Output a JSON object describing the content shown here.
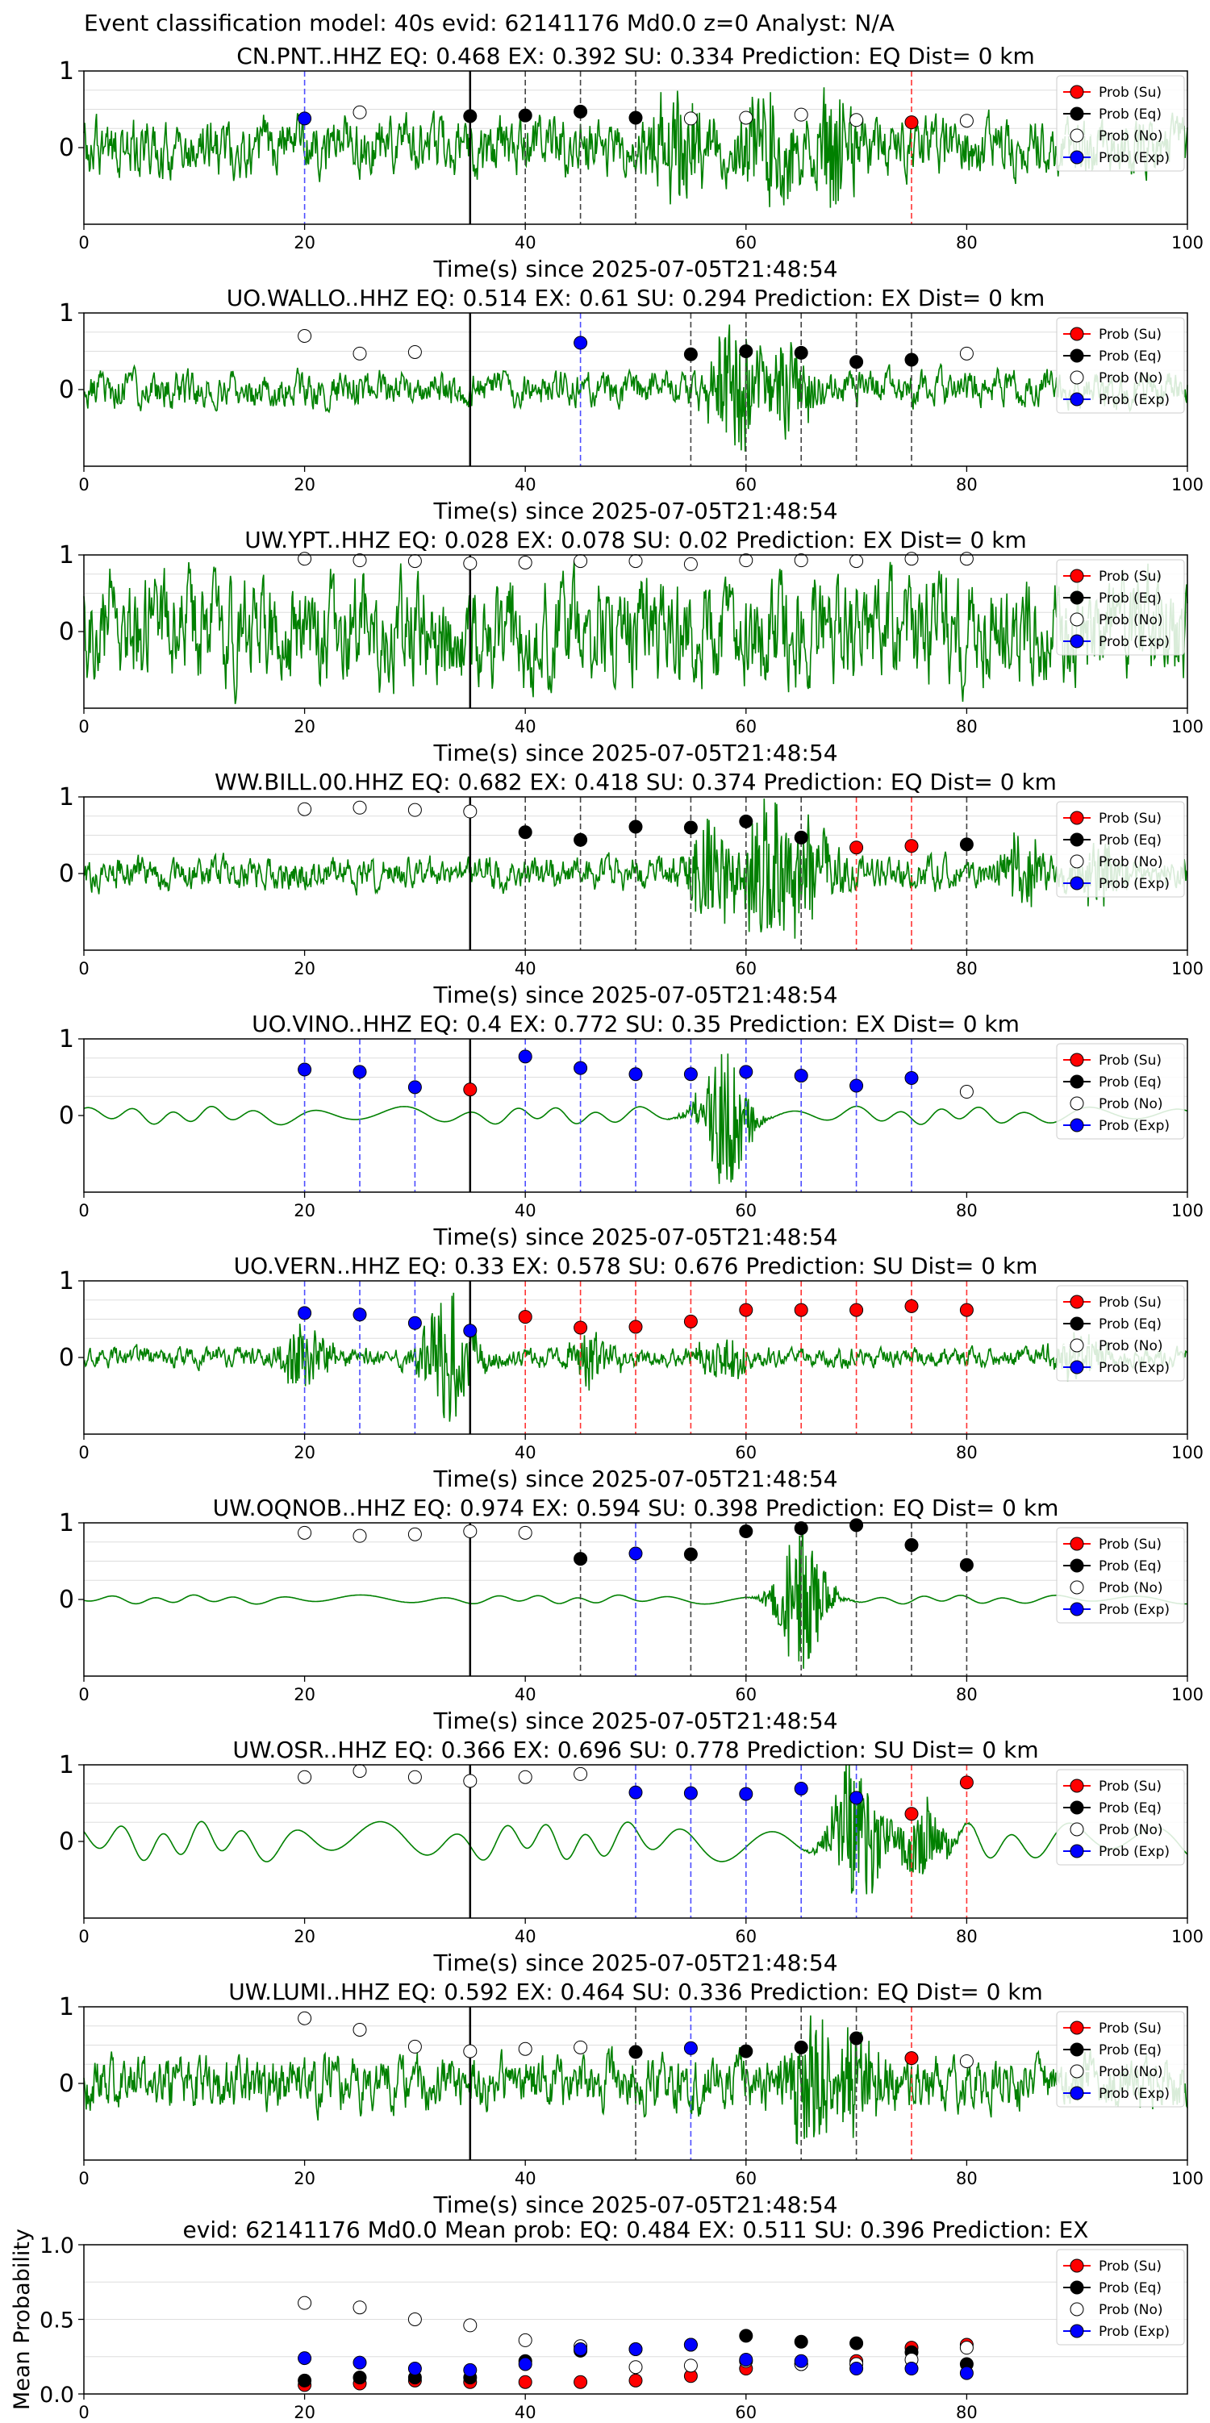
{
  "figure_title": "Event classification model: 40s evid: 62141176 Md0.0 z=0 Analyst: N/A",
  "xlabel": "Time(s) since 2025-07-05T21:48:54",
  "legend_entries": [
    "Prob (Su)",
    "Prob (Eq)",
    "Prob (No)",
    "Prob (Exp)"
  ],
  "colors": {
    "waveform": "#008000",
    "su": "#ff0000",
    "eq": "#000000",
    "no": "#ffffff",
    "exp": "#0000ff",
    "axis": "#000000",
    "grid": "#dddddd"
  },
  "chart_data": [
    {
      "type": "line",
      "title": "CN.PNT..HHZ   EQ: 0.468  EX: 0.392  SU: 0.334   Prediction: EQ    Dist= 0 km",
      "xlim": [
        0,
        100
      ],
      "ylim": [
        -1,
        1
      ],
      "xticks": [
        0,
        20,
        40,
        60,
        80,
        100
      ],
      "yticks": [
        0,
        1
      ],
      "waveform": {
        "amplitude": 0.3,
        "style": "noisy",
        "bursts": [
          {
            "t": 54,
            "a": 0.65
          },
          {
            "t": 62,
            "a": 0.75
          },
          {
            "t": 68,
            "a": 0.75
          }
        ]
      },
      "onset_line_x": 35,
      "points": [
        {
          "x": 20,
          "y": 0.38,
          "cls": "exp"
        },
        {
          "x": 25,
          "y": 0.46,
          "cls": "no"
        },
        {
          "x": 35,
          "y": 0.41,
          "cls": "eq"
        },
        {
          "x": 40,
          "y": 0.42,
          "cls": "eq"
        },
        {
          "x": 45,
          "y": 0.47,
          "cls": "eq"
        },
        {
          "x": 50,
          "y": 0.39,
          "cls": "eq"
        },
        {
          "x": 55,
          "y": 0.38,
          "cls": "no"
        },
        {
          "x": 60,
          "y": 0.39,
          "cls": "no"
        },
        {
          "x": 65,
          "y": 0.43,
          "cls": "no"
        },
        {
          "x": 70,
          "y": 0.36,
          "cls": "no"
        },
        {
          "x": 75,
          "y": 0.33,
          "cls": "su"
        },
        {
          "x": 80,
          "y": 0.35,
          "cls": "no"
        }
      ]
    },
    {
      "type": "line",
      "title": "UO.WALLO..HHZ   EQ: 0.514  EX: 0.61  SU: 0.294   Prediction: EX    Dist= 0 km",
      "xlim": [
        0,
        100
      ],
      "ylim": [
        -1,
        1
      ],
      "xticks": [
        0,
        20,
        40,
        60,
        80,
        100
      ],
      "yticks": [
        0,
        1
      ],
      "waveform": {
        "amplitude": 0.18,
        "style": "noisy",
        "bursts": [
          {
            "t": 59,
            "a": 0.9
          },
          {
            "t": 64,
            "a": 0.5
          }
        ]
      },
      "onset_line_x": 35,
      "points": [
        {
          "x": 20,
          "y": 0.7,
          "cls": "no"
        },
        {
          "x": 25,
          "y": 0.47,
          "cls": "no"
        },
        {
          "x": 30,
          "y": 0.49,
          "cls": "no"
        },
        {
          "x": 45,
          "y": 0.61,
          "cls": "exp"
        },
        {
          "x": 55,
          "y": 0.46,
          "cls": "eq"
        },
        {
          "x": 60,
          "y": 0.5,
          "cls": "eq"
        },
        {
          "x": 65,
          "y": 0.48,
          "cls": "eq"
        },
        {
          "x": 70,
          "y": 0.36,
          "cls": "eq"
        },
        {
          "x": 75,
          "y": 0.39,
          "cls": "eq"
        },
        {
          "x": 80,
          "y": 0.47,
          "cls": "no"
        }
      ]
    },
    {
      "type": "line",
      "title": "UW.YPT..HHZ   EQ: 0.028  EX: 0.078  SU: 0.02   Prediction: EX    Dist= 0 km",
      "xlim": [
        0,
        100
      ],
      "ylim": [
        -1,
        1
      ],
      "xticks": [
        0,
        20,
        40,
        60,
        80,
        100
      ],
      "yticks": [
        0,
        1
      ],
      "waveform": {
        "amplitude": 0.55,
        "style": "noisy",
        "bursts": []
      },
      "onset_line_x": 35,
      "points": [
        {
          "x": 20,
          "y": 0.95,
          "cls": "no"
        },
        {
          "x": 25,
          "y": 0.93,
          "cls": "no"
        },
        {
          "x": 30,
          "y": 0.92,
          "cls": "no"
        },
        {
          "x": 35,
          "y": 0.89,
          "cls": "no"
        },
        {
          "x": 40,
          "y": 0.9,
          "cls": "no"
        },
        {
          "x": 45,
          "y": 0.92,
          "cls": "no"
        },
        {
          "x": 50,
          "y": 0.92,
          "cls": "no"
        },
        {
          "x": 55,
          "y": 0.88,
          "cls": "no"
        },
        {
          "x": 60,
          "y": 0.93,
          "cls": "no"
        },
        {
          "x": 65,
          "y": 0.93,
          "cls": "no"
        },
        {
          "x": 70,
          "y": 0.92,
          "cls": "no"
        },
        {
          "x": 75,
          "y": 0.95,
          "cls": "no"
        },
        {
          "x": 80,
          "y": 0.95,
          "cls": "no"
        }
      ]
    },
    {
      "type": "line",
      "title": "WW.BILL.00.HHZ   EQ: 0.682  EX: 0.418  SU: 0.374   Prediction: EQ    Dist= 0 km",
      "xlim": [
        0,
        100
      ],
      "ylim": [
        -1,
        1
      ],
      "xticks": [
        0,
        20,
        40,
        60,
        80,
        100
      ],
      "yticks": [
        0,
        1
      ],
      "waveform": {
        "amplitude": 0.17,
        "style": "noisy",
        "bursts": [
          {
            "t": 57,
            "a": 0.7
          },
          {
            "t": 62,
            "a": 0.9
          },
          {
            "t": 66,
            "a": 0.6
          },
          {
            "t": 85,
            "a": 0.4
          },
          {
            "t": 92,
            "a": 0.4
          }
        ]
      },
      "onset_line_x": 35,
      "points": [
        {
          "x": 20,
          "y": 0.84,
          "cls": "no"
        },
        {
          "x": 25,
          "y": 0.86,
          "cls": "no"
        },
        {
          "x": 30,
          "y": 0.83,
          "cls": "no"
        },
        {
          "x": 35,
          "y": 0.81,
          "cls": "no"
        },
        {
          "x": 40,
          "y": 0.54,
          "cls": "eq"
        },
        {
          "x": 45,
          "y": 0.44,
          "cls": "eq"
        },
        {
          "x": 50,
          "y": 0.61,
          "cls": "eq"
        },
        {
          "x": 55,
          "y": 0.6,
          "cls": "eq"
        },
        {
          "x": 60,
          "y": 0.68,
          "cls": "eq"
        },
        {
          "x": 65,
          "y": 0.47,
          "cls": "eq"
        },
        {
          "x": 70,
          "y": 0.34,
          "cls": "su"
        },
        {
          "x": 75,
          "y": 0.36,
          "cls": "su"
        },
        {
          "x": 80,
          "y": 0.38,
          "cls": "eq"
        }
      ]
    },
    {
      "type": "line",
      "title": "UO.VINO..HHZ   EQ: 0.4  EX: 0.772  SU: 0.35   Prediction: EX    Dist= 0 km",
      "xlim": [
        0,
        100
      ],
      "ylim": [
        -1,
        1
      ],
      "xticks": [
        0,
        20,
        40,
        60,
        80,
        100
      ],
      "yticks": [
        0,
        1
      ],
      "waveform": {
        "amplitude": 0.1,
        "style": "smooth",
        "bursts": [
          {
            "t": 58,
            "a": 0.95
          }
        ]
      },
      "onset_line_x": 35,
      "points": [
        {
          "x": 20,
          "y": 0.6,
          "cls": "exp"
        },
        {
          "x": 25,
          "y": 0.57,
          "cls": "exp"
        },
        {
          "x": 30,
          "y": 0.37,
          "cls": "exp"
        },
        {
          "x": 35,
          "y": 0.34,
          "cls": "su"
        },
        {
          "x": 40,
          "y": 0.77,
          "cls": "exp"
        },
        {
          "x": 45,
          "y": 0.62,
          "cls": "exp"
        },
        {
          "x": 50,
          "y": 0.54,
          "cls": "exp"
        },
        {
          "x": 55,
          "y": 0.54,
          "cls": "exp"
        },
        {
          "x": 60,
          "y": 0.57,
          "cls": "exp"
        },
        {
          "x": 65,
          "y": 0.52,
          "cls": "exp"
        },
        {
          "x": 70,
          "y": 0.39,
          "cls": "exp"
        },
        {
          "x": 75,
          "y": 0.49,
          "cls": "exp"
        },
        {
          "x": 80,
          "y": 0.31,
          "cls": "no"
        }
      ]
    },
    {
      "type": "line",
      "title": "UO.VERN..HHZ   EQ: 0.33  EX: 0.578  SU: 0.676   Prediction: SU    Dist= 0 km",
      "xlim": [
        0,
        100
      ],
      "ylim": [
        -1,
        1
      ],
      "xticks": [
        0,
        20,
        40,
        60,
        80,
        100
      ],
      "yticks": [
        0,
        1
      ],
      "waveform": {
        "amplitude": 0.1,
        "style": "noisy",
        "bursts": [
          {
            "t": 20,
            "a": 0.4
          },
          {
            "t": 33,
            "a": 0.85
          },
          {
            "t": 46,
            "a": 0.3
          },
          {
            "t": 58,
            "a": 0.3
          },
          {
            "t": 90,
            "a": 0.3
          }
        ]
      },
      "onset_line_x": 35,
      "points": [
        {
          "x": 20,
          "y": 0.58,
          "cls": "exp"
        },
        {
          "x": 25,
          "y": 0.56,
          "cls": "exp"
        },
        {
          "x": 30,
          "y": 0.45,
          "cls": "exp"
        },
        {
          "x": 35,
          "y": 0.35,
          "cls": "exp"
        },
        {
          "x": 40,
          "y": 0.53,
          "cls": "su"
        },
        {
          "x": 45,
          "y": 0.39,
          "cls": "su"
        },
        {
          "x": 50,
          "y": 0.4,
          "cls": "su"
        },
        {
          "x": 55,
          "y": 0.47,
          "cls": "su"
        },
        {
          "x": 60,
          "y": 0.62,
          "cls": "su"
        },
        {
          "x": 65,
          "y": 0.62,
          "cls": "su"
        },
        {
          "x": 70,
          "y": 0.62,
          "cls": "su"
        },
        {
          "x": 75,
          "y": 0.67,
          "cls": "su"
        },
        {
          "x": 80,
          "y": 0.62,
          "cls": "su"
        }
      ]
    },
    {
      "type": "line",
      "title": "UW.OQNOB..HHZ   EQ: 0.974  EX: 0.594  SU: 0.398   Prediction: EQ    Dist= 0 km",
      "xlim": [
        0,
        100
      ],
      "ylim": [
        -1,
        1
      ],
      "xticks": [
        0,
        20,
        40,
        60,
        80,
        100
      ],
      "yticks": [
        0,
        1
      ],
      "waveform": {
        "amplitude": 0.05,
        "style": "smooth",
        "bursts": [
          {
            "t": 65,
            "a": 0.95
          }
        ]
      },
      "onset_line_x": 35,
      "points": [
        {
          "x": 20,
          "y": 0.87,
          "cls": "no"
        },
        {
          "x": 25,
          "y": 0.83,
          "cls": "no"
        },
        {
          "x": 30,
          "y": 0.85,
          "cls": "no"
        },
        {
          "x": 35,
          "y": 0.89,
          "cls": "no"
        },
        {
          "x": 40,
          "y": 0.87,
          "cls": "no"
        },
        {
          "x": 45,
          "y": 0.53,
          "cls": "eq"
        },
        {
          "x": 50,
          "y": 0.6,
          "cls": "exp"
        },
        {
          "x": 55,
          "y": 0.59,
          "cls": "eq"
        },
        {
          "x": 60,
          "y": 0.89,
          "cls": "eq"
        },
        {
          "x": 65,
          "y": 0.93,
          "cls": "eq"
        },
        {
          "x": 70,
          "y": 0.97,
          "cls": "eq"
        },
        {
          "x": 75,
          "y": 0.71,
          "cls": "eq"
        },
        {
          "x": 80,
          "y": 0.45,
          "cls": "eq"
        }
      ]
    },
    {
      "type": "line",
      "title": "UW.OSR..HHZ   EQ: 0.366  EX: 0.696  SU: 0.778   Prediction: SU    Dist= 0 km",
      "xlim": [
        0,
        100
      ],
      "ylim": [
        -1,
        1
      ],
      "xticks": [
        0,
        20,
        40,
        60,
        80,
        100
      ],
      "yticks": [
        0,
        1
      ],
      "waveform": {
        "amplitude": 0.22,
        "style": "smooth",
        "bursts": [
          {
            "t": 70,
            "a": 0.95
          },
          {
            "t": 76,
            "a": 0.5
          }
        ]
      },
      "onset_line_x": 35,
      "points": [
        {
          "x": 20,
          "y": 0.84,
          "cls": "no"
        },
        {
          "x": 25,
          "y": 0.92,
          "cls": "no"
        },
        {
          "x": 30,
          "y": 0.84,
          "cls": "no"
        },
        {
          "x": 35,
          "y": 0.79,
          "cls": "no"
        },
        {
          "x": 40,
          "y": 0.84,
          "cls": "no"
        },
        {
          "x": 45,
          "y": 0.88,
          "cls": "no"
        },
        {
          "x": 50,
          "y": 0.64,
          "cls": "exp"
        },
        {
          "x": 55,
          "y": 0.63,
          "cls": "exp"
        },
        {
          "x": 60,
          "y": 0.62,
          "cls": "exp"
        },
        {
          "x": 65,
          "y": 0.69,
          "cls": "exp"
        },
        {
          "x": 70,
          "y": 0.57,
          "cls": "exp"
        },
        {
          "x": 75,
          "y": 0.36,
          "cls": "su"
        },
        {
          "x": 80,
          "y": 0.77,
          "cls": "su"
        }
      ]
    },
    {
      "type": "line",
      "title": "UW.LUMI..HHZ   EQ: 0.592  EX: 0.464  SU: 0.336   Prediction: EQ    Dist= 0 km",
      "xlim": [
        0,
        100
      ],
      "ylim": [
        -1,
        1
      ],
      "xticks": [
        0,
        20,
        40,
        60,
        80,
        100
      ],
      "yticks": [
        0,
        1
      ],
      "waveform": {
        "amplitude": 0.28,
        "style": "noisy",
        "bursts": [
          {
            "t": 66,
            "a": 0.8
          },
          {
            "t": 70,
            "a": 0.6
          }
        ]
      },
      "onset_line_x": 35,
      "points": [
        {
          "x": 20,
          "y": 0.85,
          "cls": "no"
        },
        {
          "x": 25,
          "y": 0.7,
          "cls": "no"
        },
        {
          "x": 30,
          "y": 0.48,
          "cls": "no"
        },
        {
          "x": 35,
          "y": 0.42,
          "cls": "no"
        },
        {
          "x": 40,
          "y": 0.45,
          "cls": "no"
        },
        {
          "x": 45,
          "y": 0.47,
          "cls": "no"
        },
        {
          "x": 50,
          "y": 0.41,
          "cls": "eq"
        },
        {
          "x": 55,
          "y": 0.46,
          "cls": "exp"
        },
        {
          "x": 60,
          "y": 0.42,
          "cls": "eq"
        },
        {
          "x": 65,
          "y": 0.47,
          "cls": "eq"
        },
        {
          "x": 70,
          "y": 0.59,
          "cls": "eq"
        },
        {
          "x": 75,
          "y": 0.33,
          "cls": "su"
        },
        {
          "x": 80,
          "y": 0.29,
          "cls": "no"
        }
      ]
    },
    {
      "type": "scatter",
      "title": "evid: 62141176  Md0.0    Mean prob:    EQ: 0.484  EX: 0.511  SU: 0.396   Prediction: EX",
      "ylabel": "Mean Probability",
      "xlim": [
        0,
        100
      ],
      "ylim": [
        0,
        1
      ],
      "xticks": [
        0,
        20,
        40,
        60,
        80
      ],
      "yticks": [
        0.0,
        0.5,
        1.0
      ],
      "ytick_labels": [
        "0.0",
        "0.5",
        "1.0"
      ],
      "x": [
        20,
        25,
        30,
        35,
        40,
        45,
        50,
        55,
        60,
        65,
        70,
        75,
        80
      ],
      "series": [
        {
          "name": "Prob (Su)",
          "cls": "su",
          "values": [
            0.06,
            0.07,
            0.09,
            0.08,
            0.08,
            0.08,
            0.09,
            0.12,
            0.17,
            0.2,
            0.22,
            0.31,
            0.33
          ]
        },
        {
          "name": "Prob (Eq)",
          "cls": "eq",
          "values": [
            0.09,
            0.11,
            0.11,
            0.11,
            0.22,
            0.29,
            0.3,
            0.33,
            0.39,
            0.35,
            0.34,
            0.28,
            0.2
          ]
        },
        {
          "name": "Prob (No)",
          "cls": "no",
          "values": [
            0.61,
            0.58,
            0.5,
            0.46,
            0.36,
            0.32,
            0.18,
            0.19,
            0.22,
            0.2,
            0.2,
            0.23,
            0.31
          ]
        },
        {
          "name": "Prob (Exp)",
          "cls": "exp",
          "values": [
            0.24,
            0.21,
            0.17,
            0.16,
            0.2,
            0.3,
            0.3,
            0.33,
            0.23,
            0.22,
            0.17,
            0.17,
            0.14
          ]
        }
      ]
    }
  ]
}
